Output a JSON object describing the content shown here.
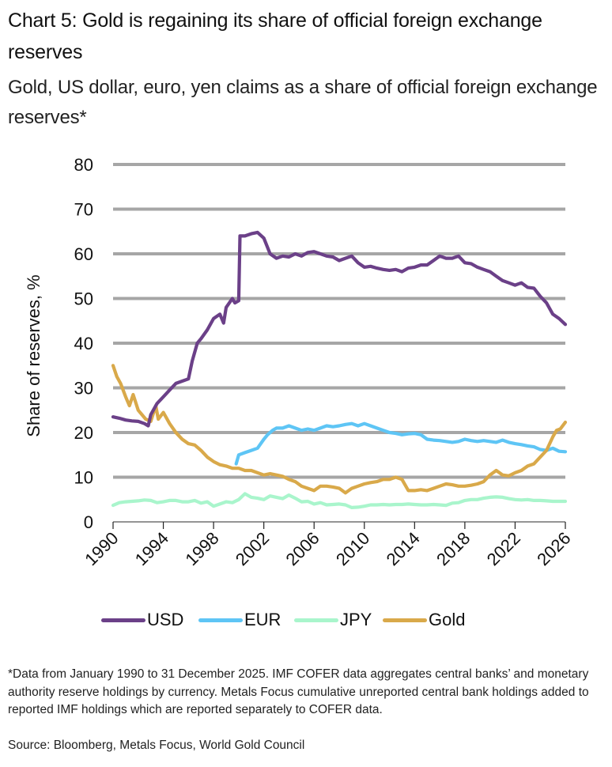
{
  "header": {
    "title": "Chart 5: Gold is regaining its share of official foreign exchange reserves",
    "subtitle": "Gold, US dollar, euro, yen claims as a share of official foreign exchange reserves*"
  },
  "colors": {
    "USD": "#6b4088",
    "EUR": "#5ec5f5",
    "JPY": "#a9f5cc",
    "Gold": "#d9a94a",
    "grid": "#a6a6a6",
    "axis": "#555555"
  },
  "chart_data": {
    "type": "line",
    "title": "Chart 5: Gold is regaining its share of official foreign exchange reserves",
    "subtitle": "Gold, US dollar, euro, yen claims as a share of official foreign exchange reserves*",
    "xlabel": "",
    "ylabel": "Share of reserves, %",
    "xlim": [
      1990,
      2026
    ],
    "ylim": [
      0,
      80
    ],
    "yticks": [
      0,
      10,
      20,
      30,
      40,
      50,
      60,
      70,
      80
    ],
    "xticks": [
      1990,
      1994,
      1998,
      2002,
      2006,
      2010,
      2014,
      2018,
      2022,
      2026
    ],
    "grid": "horizontal",
    "legend_position": "bottom",
    "series": [
      {
        "name": "USD",
        "x": [
          1990,
          1990.5,
          1991,
          1991.5,
          1992,
          1992.5,
          1992.8,
          1993,
          1993.5,
          1994,
          1994.5,
          1995,
          1995.5,
          1996,
          1996.3,
          1996.7,
          1997,
          1997.5,
          1998,
          1998.5,
          1998.8,
          1999,
          1999.5,
          1999.7,
          2000,
          2000.1,
          2000.5,
          2001,
          2001.5,
          2002,
          2002.5,
          2003,
          2003.5,
          2004,
          2004.5,
          2005,
          2005.5,
          2006,
          2006.5,
          2007,
          2007.5,
          2008,
          2008.5,
          2009,
          2009.5,
          2010,
          2010.5,
          2011,
          2011.5,
          2012,
          2012.5,
          2013,
          2013.5,
          2014,
          2014.5,
          2015,
          2015.5,
          2016,
          2016.5,
          2017,
          2017.5,
          2018,
          2018.5,
          2019,
          2019.5,
          2020,
          2020.5,
          2021,
          2021.5,
          2022,
          2022.5,
          2023,
          2023.5,
          2024,
          2024.5,
          2025,
          2025.5,
          2026
        ],
        "values": [
          23.5,
          23.2,
          22.8,
          22.6,
          22.5,
          22.0,
          21.5,
          24.0,
          26.5,
          28.0,
          29.5,
          31.0,
          31.5,
          32.0,
          36.0,
          40.0,
          41.0,
          43.0,
          45.5,
          46.5,
          44.5,
          48.0,
          50.0,
          49.0,
          49.5,
          64.0,
          64.0,
          64.5,
          64.8,
          63.5,
          60.0,
          59.0,
          59.5,
          59.3,
          60.0,
          59.5,
          60.3,
          60.5,
          60.0,
          59.5,
          59.3,
          58.5,
          59.0,
          59.5,
          58.0,
          57.0,
          57.2,
          56.8,
          56.5,
          56.3,
          56.5,
          56.0,
          56.8,
          57.0,
          57.5,
          57.5,
          58.5,
          59.5,
          59.0,
          59.0,
          59.5,
          58.0,
          57.8,
          57.0,
          56.5,
          56.0,
          55.0,
          54.0,
          53.5,
          53.0,
          53.5,
          52.5,
          52.3,
          50.5,
          49.0,
          46.5,
          45.5,
          44.2
        ]
      },
      {
        "name": "EUR",
        "x": [
          1999.8,
          2000,
          2000.5,
          2001,
          2001.5,
          2002,
          2002.3,
          2002.7,
          2003,
          2003.5,
          2004,
          2004.5,
          2005,
          2005.5,
          2006,
          2006.5,
          2007,
          2007.5,
          2008,
          2008.5,
          2009,
          2009.5,
          2010,
          2010.5,
          2011,
          2011.5,
          2012,
          2012.5,
          2013,
          2013.5,
          2014,
          2014.5,
          2015,
          2015.5,
          2016,
          2016.5,
          2017,
          2017.5,
          2018,
          2018.5,
          2019,
          2019.5,
          2020,
          2020.5,
          2021,
          2021.5,
          2022,
          2022.5,
          2023,
          2023.5,
          2024,
          2024.5,
          2025,
          2025.5,
          2026
        ],
        "values": [
          13.0,
          15.0,
          15.5,
          16.0,
          16.5,
          18.5,
          19.5,
          20.5,
          21.0,
          21.0,
          21.5,
          21.0,
          20.5,
          20.8,
          20.5,
          21.0,
          21.5,
          21.3,
          21.5,
          21.8,
          22.0,
          21.5,
          22.0,
          21.5,
          21.0,
          20.5,
          20.0,
          19.8,
          19.5,
          19.7,
          19.8,
          19.5,
          18.5,
          18.3,
          18.2,
          18.0,
          17.8,
          18.0,
          18.5,
          18.2,
          18.0,
          18.2,
          18.0,
          17.8,
          18.3,
          17.8,
          17.5,
          17.3,
          17.0,
          16.8,
          16.2,
          16.0,
          16.5,
          15.8,
          15.7
        ]
      },
      {
        "name": "JPY",
        "x": [
          1990,
          1990.5,
          1991,
          1991.5,
          1992,
          1992.5,
          1993,
          1993.5,
          1994,
          1994.5,
          1995,
          1995.5,
          1996,
          1996.5,
          1997,
          1997.5,
          1998,
          1998.5,
          1999,
          1999.5,
          2000,
          2000.5,
          2001,
          2001.5,
          2002,
          2002.5,
          2003,
          2003.5,
          2004,
          2004.5,
          2005,
          2005.5,
          2006,
          2006.5,
          2007,
          2007.5,
          2008,
          2008.5,
          2009,
          2009.5,
          2010,
          2010.5,
          2011,
          2011.5,
          2012,
          2012.5,
          2013,
          2013.5,
          2014,
          2014.5,
          2015,
          2015.5,
          2016,
          2016.5,
          2017,
          2017.5,
          2018,
          2018.5,
          2019,
          2019.5,
          2020,
          2020.5,
          2021,
          2021.5,
          2022,
          2022.5,
          2023,
          2023.5,
          2024,
          2024.5,
          2025,
          2025.5,
          2026
        ],
        "values": [
          3.7,
          4.3,
          4.5,
          4.6,
          4.7,
          4.9,
          4.8,
          4.3,
          4.5,
          4.8,
          4.8,
          4.5,
          4.5,
          4.8,
          4.2,
          4.5,
          3.5,
          4.0,
          4.5,
          4.3,
          5.0,
          6.3,
          5.5,
          5.3,
          5.0,
          5.8,
          5.5,
          5.2,
          6.0,
          5.3,
          4.5,
          4.6,
          4.0,
          4.3,
          3.8,
          3.9,
          4.0,
          3.8,
          3.2,
          3.3,
          3.5,
          3.8,
          3.8,
          3.9,
          3.8,
          3.9,
          3.9,
          4.0,
          3.9,
          3.8,
          3.8,
          3.9,
          3.8,
          3.7,
          4.2,
          4.3,
          4.8,
          5.0,
          5.0,
          5.3,
          5.5,
          5.6,
          5.5,
          5.2,
          5.0,
          4.9,
          5.0,
          4.8,
          4.8,
          4.7,
          4.6,
          4.6,
          4.6
        ]
      },
      {
        "name": "Gold",
        "x": [
          1990,
          1990.3,
          1990.6,
          1991,
          1991.3,
          1991.6,
          1992,
          1992.3,
          1992.6,
          1993,
          1993.4,
          1993.6,
          1994,
          1994.5,
          1995,
          1995.5,
          1996,
          1996.5,
          1997,
          1997.5,
          1998,
          1998.5,
          1999,
          1999.5,
          2000,
          2000.5,
          2001,
          2001.5,
          2002,
          2002.5,
          2003,
          2003.5,
          2004,
          2004.5,
          2005,
          2005.5,
          2006,
          2006.5,
          2007,
          2007.5,
          2008,
          2008.5,
          2009,
          2009.5,
          2010,
          2010.5,
          2011,
          2011.5,
          2012,
          2012.5,
          2013,
          2013.5,
          2014,
          2014.5,
          2015,
          2015.5,
          2016,
          2016.5,
          2017,
          2017.5,
          2018,
          2018.5,
          2019,
          2019.5,
          2020,
          2020.5,
          2021,
          2021.5,
          2022,
          2022.5,
          2023,
          2023.5,
          2024,
          2024.5,
          2025,
          2025.3,
          2025.6,
          2026
        ],
        "values": [
          35.0,
          32.5,
          31.0,
          28.0,
          26.0,
          28.5,
          25.0,
          24.0,
          23.0,
          22.5,
          26.0,
          23.0,
          24.5,
          22.0,
          20.0,
          18.5,
          17.5,
          17.2,
          16.0,
          14.5,
          13.5,
          12.8,
          12.5,
          12.0,
          12.0,
          11.5,
          11.5,
          11.0,
          10.5,
          10.8,
          10.5,
          10.2,
          9.5,
          9.0,
          8.0,
          7.5,
          7.0,
          8.0,
          8.0,
          7.8,
          7.5,
          6.5,
          7.5,
          8.0,
          8.5,
          8.8,
          9.0,
          9.5,
          9.5,
          10.0,
          9.5,
          7.0,
          7.0,
          7.2,
          7.0,
          7.5,
          8.0,
          8.5,
          8.3,
          8.0,
          8.0,
          8.2,
          8.5,
          9.0,
          10.5,
          11.5,
          10.5,
          10.3,
          11.0,
          11.5,
          12.5,
          13.0,
          14.5,
          16.0,
          19.0,
          20.5,
          20.8,
          22.3
        ]
      }
    ]
  },
  "legend": [
    {
      "label": "USD",
      "key": "USD"
    },
    {
      "label": "EUR",
      "key": "EUR"
    },
    {
      "label": "JPY",
      "key": "JPY"
    },
    {
      "label": "Gold",
      "key": "Gold"
    }
  ],
  "footer": {
    "note": "*Data from January 1990 to 31 December 2025. IMF COFER data aggregates central banks’ and monetary authority reserve holdings by currency. Metals Focus cumulative unreported central bank holdings added to reported IMF holdings which are reported separately to COFER data.",
    "source": "Source: Bloomberg, Metals Focus, World Gold Council"
  }
}
